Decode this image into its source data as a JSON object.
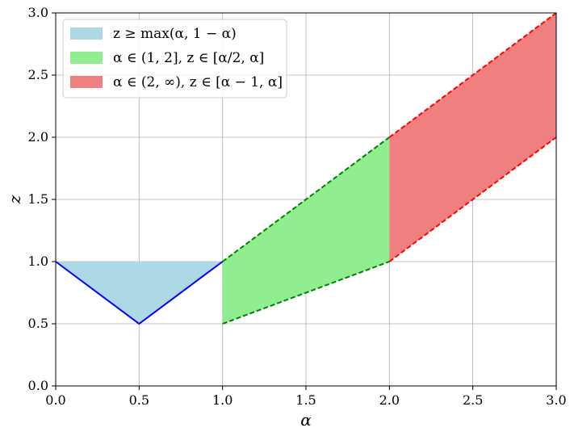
{
  "chart_data": {
    "type": "area",
    "title": "",
    "xlabel": "α",
    "ylabel": "z",
    "xlim": [
      0,
      3
    ],
    "ylim": [
      0,
      3
    ],
    "xticks": [
      "0.0",
      "0.5",
      "1.0",
      "1.5",
      "2.0",
      "2.5",
      "3.0"
    ],
    "yticks": [
      "0.0",
      "0.5",
      "1.0",
      "1.5",
      "2.0",
      "2.5",
      "3.0"
    ],
    "grid": true,
    "legend_position": "top-left",
    "series": [
      {
        "name": "z ≥ max(α, 1 − α)",
        "color": "#add8e6",
        "edge_color": "#0000ff",
        "edge_style": "solid",
        "x": [
          0,
          0.5,
          1
        ],
        "lower": [
          1,
          0.5,
          1
        ],
        "upper": [
          1,
          1,
          1
        ]
      },
      {
        "name": "α ∈ (1, 2], z ∈ [α/2, α]",
        "color": "#90ee90",
        "edge_color": "#008000",
        "edge_style": "dashed",
        "x": [
          1,
          2
        ],
        "lower": [
          0.5,
          1
        ],
        "upper": [
          1,
          2
        ]
      },
      {
        "name": "α ∈ (2, ∞), z ∈ [α − 1, α]",
        "color": "#f08080",
        "edge_color": "#ff0000",
        "edge_style": "dashed",
        "x": [
          2,
          3
        ],
        "lower": [
          1,
          2
        ],
        "upper": [
          2,
          3
        ]
      }
    ]
  }
}
